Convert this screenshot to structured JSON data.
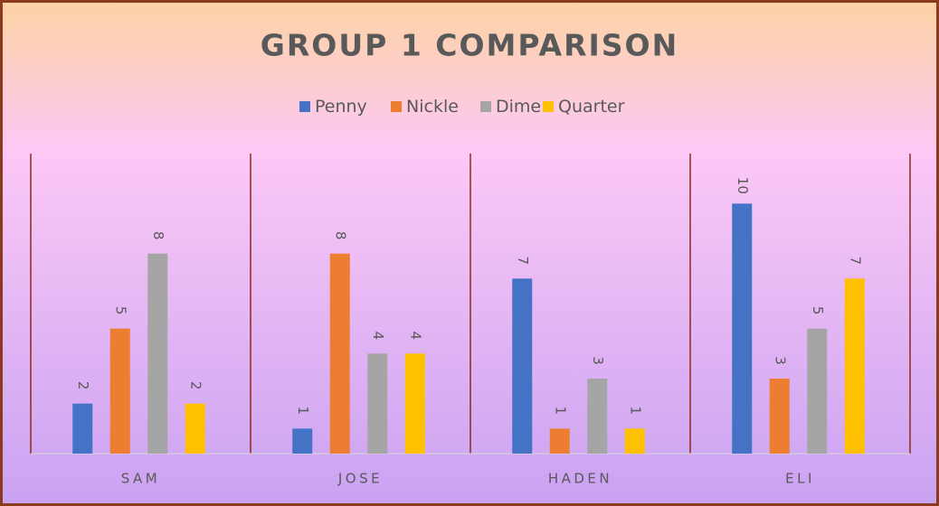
{
  "chart_data": {
    "type": "bar",
    "title": "GROUP 1 COMPARISON",
    "categories": [
      "SAM",
      "JOSE",
      "HADEN",
      "ELI"
    ],
    "series": [
      {
        "name": "Penny",
        "color": "#4472c4",
        "values": [
          2,
          1,
          7,
          10
        ]
      },
      {
        "name": "Nickle",
        "color": "#ed7d31",
        "values": [
          5,
          8,
          1,
          3
        ]
      },
      {
        "name": "Dime",
        "color": "#a5a5a5",
        "values": [
          8,
          4,
          3,
          5
        ]
      },
      {
        "name": "Quarter",
        "color": "#ffc000",
        "values": [
          2,
          4,
          1,
          7
        ]
      }
    ],
    "ylim": [
      0,
      12
    ],
    "legend": "top"
  }
}
